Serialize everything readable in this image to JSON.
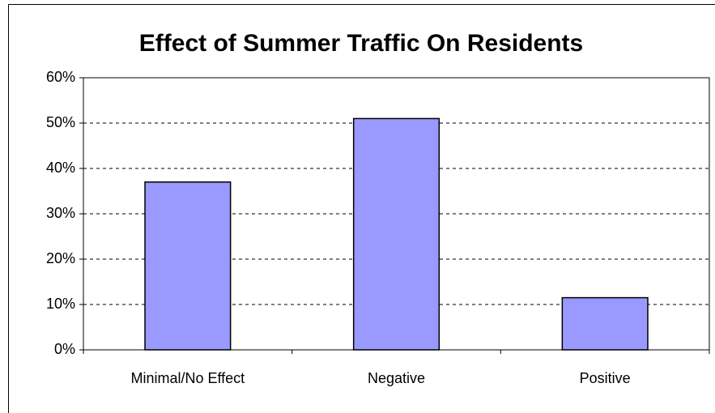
{
  "chart_data": {
    "type": "bar",
    "title": "Effect of Summer Traffic On Residents",
    "categories": [
      "Minimal/No Effect",
      "Negative",
      "Positive"
    ],
    "values": [
      37,
      51,
      11.5
    ],
    "color": "#9999ff",
    "ylim": [
      0,
      60
    ],
    "yticks": [
      {
        "value": 0,
        "label": "0%"
      },
      {
        "value": 10,
        "label": "10%"
      },
      {
        "value": 20,
        "label": "20%"
      },
      {
        "value": 30,
        "label": "30%"
      },
      {
        "value": 40,
        "label": "40%"
      },
      {
        "value": 50,
        "label": "50%"
      },
      {
        "value": 60,
        "label": "60%"
      }
    ],
    "grid": true
  }
}
